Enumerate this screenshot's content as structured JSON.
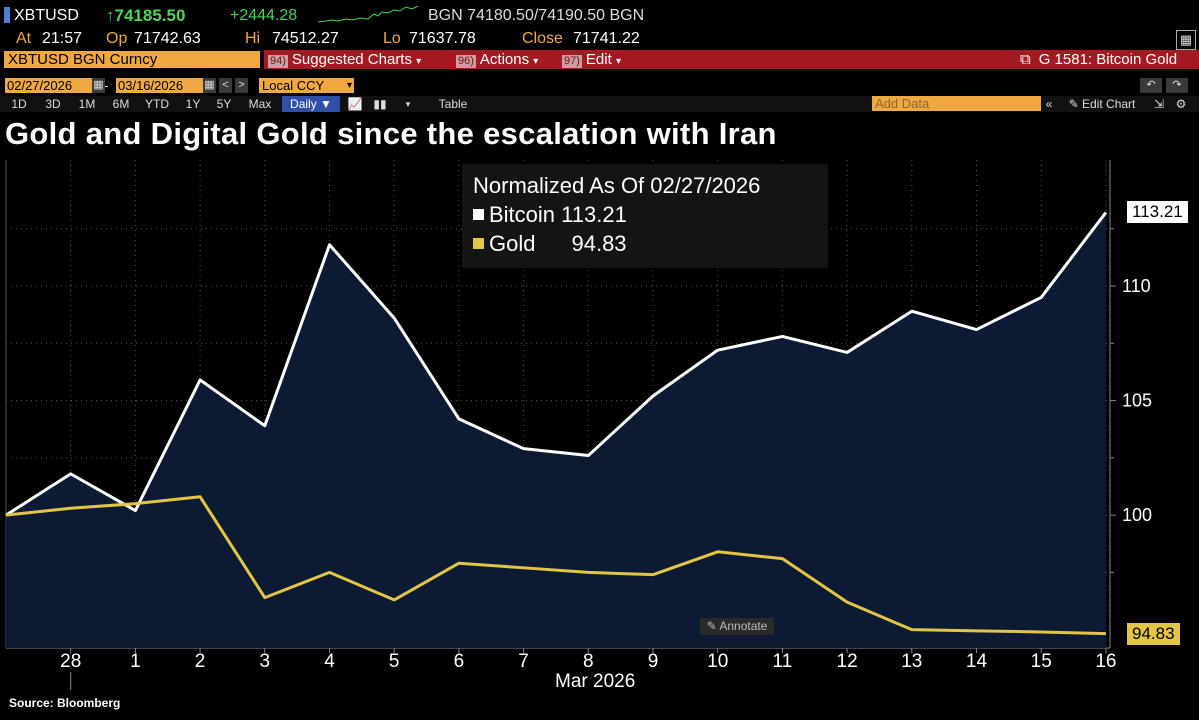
{
  "header": {
    "ticker": "XBTUSD",
    "last_price": "↑74185.50",
    "change": "+2444.28",
    "bid_ask": "BGN 74180.50/74190.50 BGN",
    "at_label": "At",
    "at_value": "21:57",
    "op_label": "Op",
    "op_value": "71742.63",
    "hi_label": "Hi",
    "hi_value": "74512.27",
    "lo_label": "Lo",
    "lo_value": "71637.78",
    "close_label": "Close",
    "close_value": "71741.22"
  },
  "toolbar": {
    "security": "XBTUSD BGN Curncy",
    "suggested_num": "94)",
    "suggested_label": "Suggested Charts",
    "actions_num": "96)",
    "actions_label": "Actions",
    "edit_num": "97)",
    "edit_label": "Edit",
    "chart_name": "G 1581: Bitcoin Gold",
    "start_date": "02/27/2026",
    "date_separator": "-",
    "end_date": "03/16/2026",
    "currency": "Local CCY",
    "periods": [
      "1D",
      "3D",
      "1M",
      "6M",
      "YTD",
      "1Y",
      "5Y",
      "Max"
    ],
    "frequency": "Daily ▼",
    "table_label": "Table",
    "add_data_placeholder": "Add Data",
    "edit_chart_label": "Edit Chart"
  },
  "colors": {
    "bitcoin": "#ffffff",
    "gold": "#e3c545",
    "area_fill": "#0d1a33",
    "orange": "#f0a843",
    "red_bar": "#a31b22"
  },
  "chart_data": {
    "type": "line",
    "title": "Gold and Digital Gold since the escalation with Iran",
    "legend_title": "Normalized As Of 02/27/2026",
    "categories": [
      "27",
      "28",
      "1",
      "2",
      "3",
      "4",
      "5",
      "6",
      "7",
      "8",
      "9",
      "10",
      "11",
      "12",
      "13",
      "14",
      "15",
      "16"
    ],
    "tick_labels": [
      "28",
      "1",
      "2",
      "3",
      "4",
      "5",
      "6",
      "7",
      "8",
      "9",
      "10",
      "11",
      "12",
      "13",
      "14",
      "15",
      "16"
    ],
    "xlabel": "Mar 2026",
    "ylabel": "",
    "ylim": [
      94.2,
      115.5
    ],
    "yticks": [
      100,
      105,
      110
    ],
    "series": [
      {
        "name": "Bitcoin",
        "last_value": "113.21",
        "fill": true,
        "values": [
          100.0,
          101.8,
          100.2,
          105.9,
          103.9,
          111.8,
          108.6,
          104.2,
          102.9,
          102.6,
          105.2,
          107.2,
          107.8,
          107.1,
          108.9,
          108.1,
          109.5,
          113.21
        ]
      },
      {
        "name": "Gold",
        "last_value": "94.83",
        "fill": false,
        "values": [
          100.0,
          100.3,
          100.5,
          100.8,
          96.4,
          97.5,
          96.3,
          97.9,
          97.7,
          97.5,
          97.4,
          98.4,
          98.1,
          96.2,
          95.0,
          94.95,
          94.9,
          94.83
        ]
      }
    ],
    "annotate_label": "Annotate",
    "source": "Source: Bloomberg",
    "grid": true,
    "legend_position": "top-center"
  }
}
